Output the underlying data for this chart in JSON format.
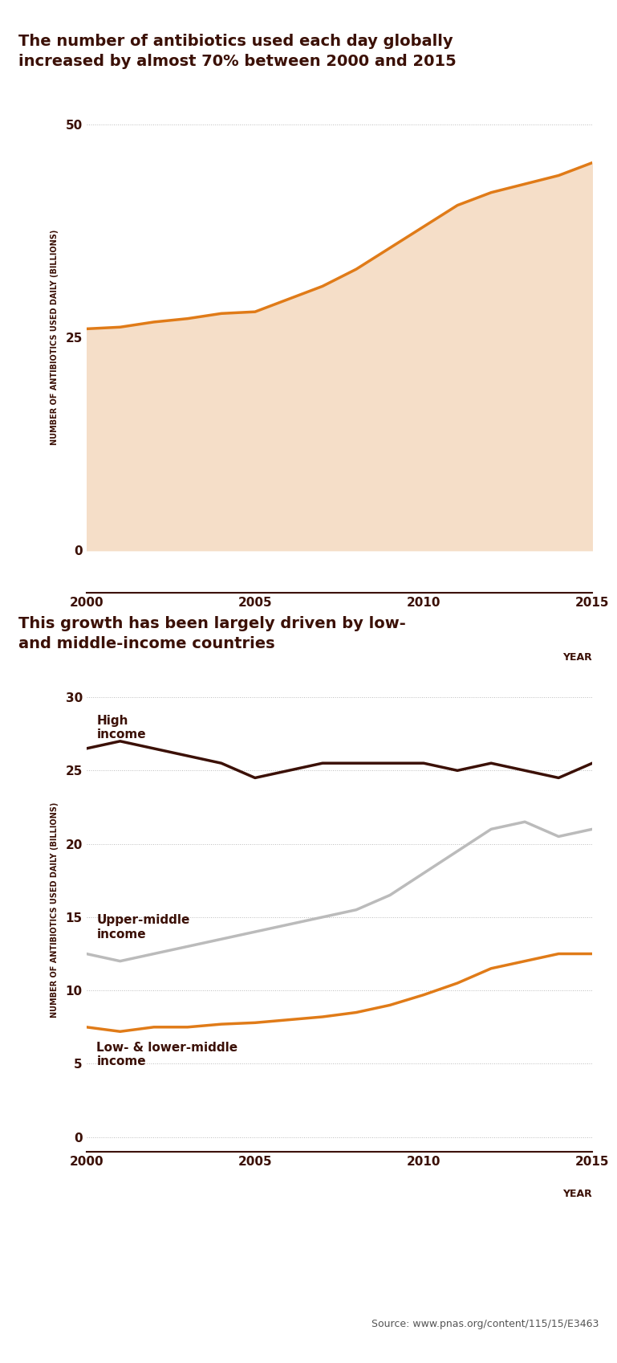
{
  "title1": "The number of antibiotics used each day globally\nincreased by almost 70% between 2000 and 2015",
  "title2": "This growth has been largely driven by low-\nand middle-income countries",
  "top_bar_color": "#3B1006",
  "background_color": "#FFFFFF",
  "title_color": "#3B1006",
  "axis_label": "NUMBER OF ANTIBIOTICS USED DAILY (BILLIONS)",
  "xlabel": "YEAR",
  "years": [
    2000,
    2001,
    2002,
    2003,
    2004,
    2005,
    2006,
    2007,
    2008,
    2009,
    2010,
    2011,
    2012,
    2013,
    2014,
    2015
  ],
  "total_values": [
    26.0,
    26.2,
    26.8,
    27.2,
    27.8,
    28.0,
    29.5,
    31.0,
    33.0,
    35.5,
    38.0,
    40.5,
    42.0,
    43.0,
    44.0,
    45.5
  ],
  "total_fill_color": "#F5DEC8",
  "total_line_color": "#E07B18",
  "high_income": [
    26.5,
    27.0,
    26.5,
    26.0,
    25.5,
    24.5,
    25.0,
    25.5,
    25.5,
    25.5,
    25.5,
    25.0,
    25.5,
    25.0,
    24.5,
    25.5
  ],
  "upper_middle_income": [
    12.5,
    12.0,
    12.5,
    13.0,
    13.5,
    14.0,
    14.5,
    15.0,
    15.5,
    16.5,
    18.0,
    19.5,
    21.0,
    21.5,
    20.5,
    21.0
  ],
  "low_lower_middle_income": [
    7.5,
    7.2,
    7.5,
    7.5,
    7.7,
    7.8,
    8.0,
    8.2,
    8.5,
    9.0,
    9.7,
    10.5,
    11.5,
    12.0,
    12.5,
    12.5
  ],
  "high_income_color": "#3B1006",
  "upper_middle_color": "#BBBBBB",
  "low_lower_color": "#E07B18",
  "ylim1": [
    -5,
    55
  ],
  "yticks1": [
    0,
    25,
    50
  ],
  "ylim2": [
    -1,
    32
  ],
  "yticks2": [
    0,
    5,
    10,
    15,
    20,
    25,
    30
  ],
  "grid_color": "#BBBBBB",
  "tick_color": "#3B1006",
  "label_color": "#3B1006",
  "source_text": "Source: www.pnas.org/content/115/15/E3463",
  "wellcome_bg": "#3B1006"
}
